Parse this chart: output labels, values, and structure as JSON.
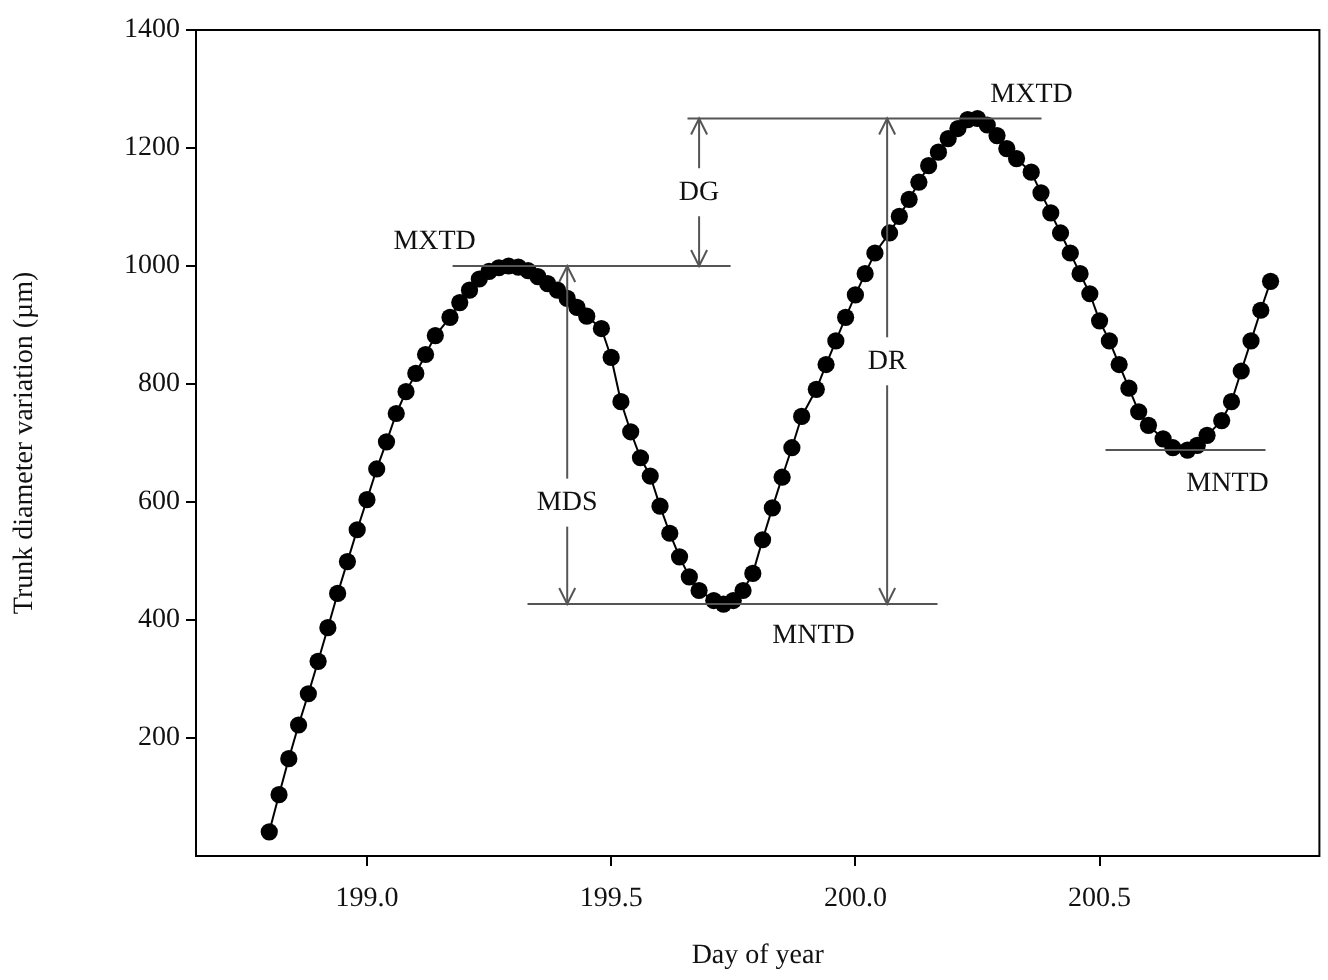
{
  "chart_data": {
    "type": "line",
    "xlabel": "Day of year",
    "ylabel": "Trunk diameter variation (µm)",
    "xlim": [
      198.65,
      200.95
    ],
    "xticks": [
      {
        "value": 199,
        "label": "199.0"
      },
      199.5,
      {
        "value": 200,
        "label": "200.0"
      },
      200.5
    ],
    "ylim": [
      0,
      1400
    ],
    "yticks": [
      200,
      400,
      600,
      800,
      1000,
      1200,
      1400
    ],
    "grid": false,
    "legend": false,
    "marker": "circle",
    "line_style": "solid",
    "x": [
      198.8,
      198.82,
      198.84,
      198.86,
      198.88,
      198.9,
      198.92,
      198.94,
      198.96,
      198.98,
      199.0,
      199.02,
      199.04,
      199.06,
      199.08,
      199.1,
      199.12,
      199.14,
      199.17,
      199.19,
      199.21,
      199.23,
      199.25,
      199.27,
      199.29,
      199.31,
      199.33,
      199.35,
      199.37,
      199.39,
      199.41,
      199.43,
      199.45,
      199.48,
      199.5,
      199.52,
      199.54,
      199.56,
      199.58,
      199.6,
      199.62,
      199.64,
      199.66,
      199.68,
      199.71,
      199.73,
      199.75,
      199.77,
      199.79,
      199.81,
      199.83,
      199.85,
      199.87,
      199.89,
      199.92,
      199.94,
      199.96,
      199.98,
      200.0,
      200.02,
      200.04,
      200.07,
      200.09,
      200.11,
      200.13,
      200.15,
      200.17,
      200.19,
      200.21,
      200.23,
      200.25,
      200.27,
      200.29,
      200.31,
      200.33,
      200.36,
      200.38,
      200.4,
      200.42,
      200.44,
      200.46,
      200.48,
      200.5,
      200.52,
      200.54,
      200.56,
      200.58,
      200.6,
      200.63,
      200.65,
      200.68,
      200.7,
      200.72,
      200.75,
      200.77,
      200.79,
      200.81,
      200.83,
      200.85
    ],
    "series": [
      {
        "color": "#000000",
        "values": [
          41,
          104,
          165,
          222,
          275,
          330,
          387,
          445,
          499,
          553,
          604,
          656,
          702,
          750,
          787,
          818,
          850,
          882,
          913,
          938,
          959,
          978,
          991,
          997,
          1000,
          998,
          992,
          982,
          970,
          959,
          945,
          930,
          915,
          894,
          845,
          770,
          719,
          675,
          644,
          593,
          547,
          507,
          473,
          450,
          433,
          427,
          433,
          450,
          479,
          536,
          590,
          642,
          692,
          745,
          791,
          833,
          873,
          913,
          951,
          987,
          1022,
          1056,
          1084,
          1113,
          1142,
          1170,
          1193,
          1216,
          1233,
          1248,
          1250,
          1239,
          1221,
          1199,
          1182,
          1159,
          1124,
          1090,
          1056,
          1022,
          987,
          953,
          907,
          873,
          833,
          793,
          753,
          730,
          707,
          692,
          688,
          696,
          713,
          738,
          770,
          822,
          873,
          925,
          974
        ]
      }
    ],
    "ref_lines": [
      {
        "axis": "y",
        "value": 1000,
        "label": "MXTD",
        "color": "#555555"
      },
      {
        "axis": "y",
        "value": 427,
        "label": "MNTD",
        "color": "#555555"
      },
      {
        "axis": "y",
        "value": 1250,
        "label": "MXTD",
        "color": "#555555"
      },
      {
        "axis": "y",
        "value": 688,
        "label": "MNTD",
        "color": "#555555"
      }
    ],
    "annotations": [
      {
        "text": "MDS",
        "x": 199.41,
        "y": 427
      },
      {
        "text": "DG",
        "x": 199.68,
        "y": 1000
      },
      {
        "text": "DR",
        "x": 200.065,
        "y": 427
      }
    ]
  }
}
